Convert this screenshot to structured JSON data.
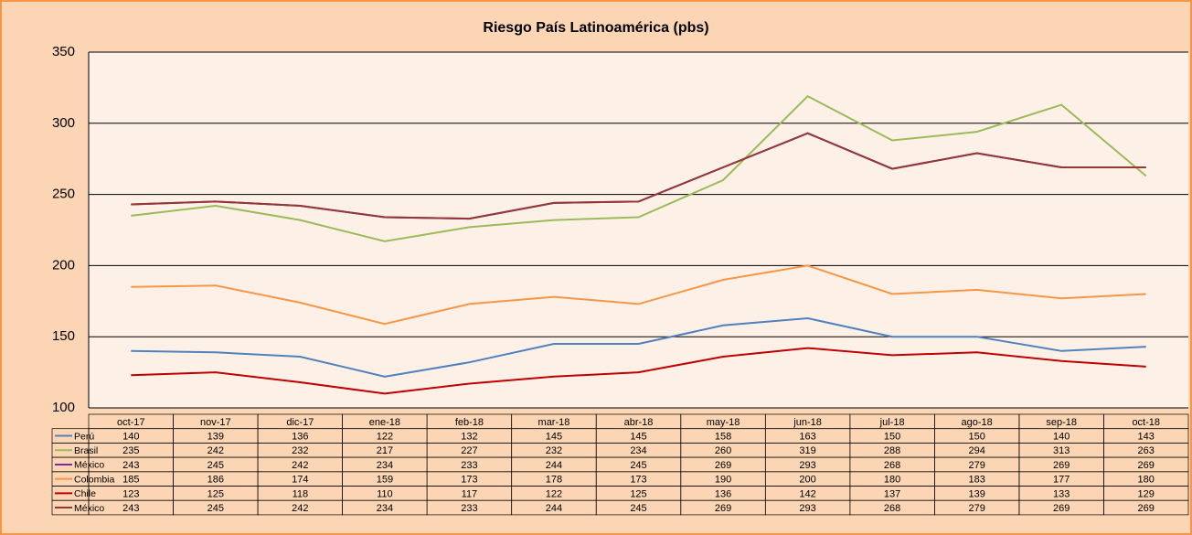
{
  "chart_data": {
    "type": "line",
    "title": "Riesgo País Latinoamérica (pbs)",
    "categories": [
      "oct-17",
      "nov-17",
      "dic-17",
      "ene-18",
      "feb-18",
      "mar-18",
      "abr-18",
      "may-18",
      "jun-18",
      "jul-18",
      "ago-18",
      "sep-18",
      "oct-18"
    ],
    "ylim": [
      100,
      350
    ],
    "yticks": [
      100,
      150,
      200,
      250,
      300,
      350
    ],
    "grid": true,
    "series": [
      {
        "name": "Perú",
        "color": "#4f81bd",
        "values": [
          140,
          139,
          136,
          122,
          132,
          145,
          145,
          158,
          163,
          150,
          150,
          140,
          143
        ]
      },
      {
        "name": "Brasil",
        "color": "#9bbb59",
        "values": [
          235,
          242,
          232,
          217,
          227,
          232,
          234,
          260,
          319,
          288,
          294,
          313,
          263
        ]
      },
      {
        "name": "México",
        "color": "#7030a0",
        "values": [
          243,
          245,
          242,
          234,
          233,
          244,
          245,
          269,
          293,
          268,
          279,
          269,
          269
        ]
      },
      {
        "name": "Colombia",
        "color": "#f79646",
        "values": [
          185,
          186,
          174,
          159,
          173,
          178,
          173,
          190,
          200,
          180,
          183,
          177,
          180
        ]
      },
      {
        "name": "Chile",
        "color": "#c00000",
        "values": [
          123,
          125,
          118,
          110,
          117,
          122,
          125,
          136,
          142,
          137,
          139,
          133,
          129
        ]
      },
      {
        "name": "México",
        "color": "#953735",
        "values": [
          243,
          245,
          242,
          234,
          233,
          244,
          245,
          269,
          293,
          268,
          279,
          269,
          269
        ]
      }
    ]
  }
}
